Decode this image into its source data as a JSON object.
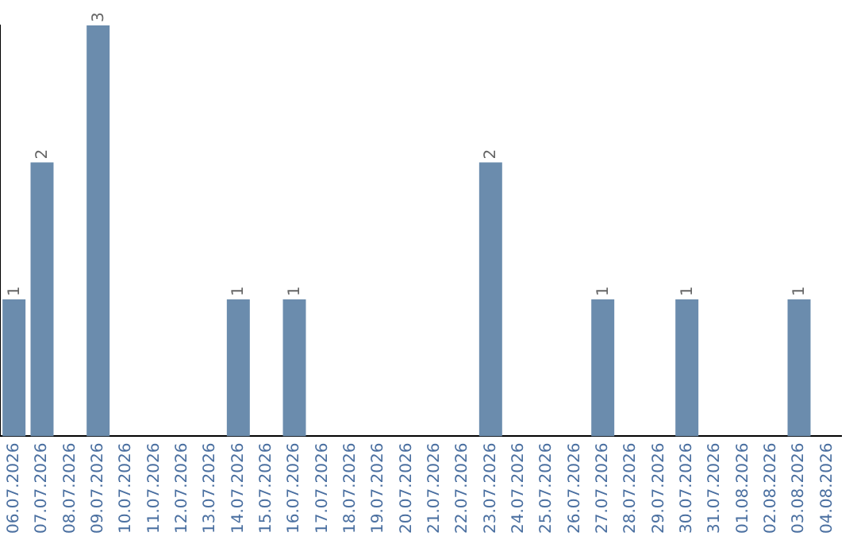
{
  "chart_data": {
    "type": "bar",
    "categories": [
      "06.07.2026",
      "07.07.2026",
      "08.07.2026",
      "09.07.2026",
      "10.07.2026",
      "11.07.2026",
      "12.07.2026",
      "13.07.2026",
      "14.07.2026",
      "15.07.2026",
      "16.07.2026",
      "17.07.2026",
      "18.07.2026",
      "19.07.2026",
      "20.07.2026",
      "21.07.2026",
      "22.07.2026",
      "23.07.2026",
      "24.07.2026",
      "25.07.2026",
      "26.07.2026",
      "27.07.2026",
      "28.07.2026",
      "29.07.2026",
      "30.07.2026",
      "31.07.2026",
      "01.08.2026",
      "02.08.2026",
      "03.08.2026",
      "04.08.2026"
    ],
    "values": [
      1,
      2,
      0,
      3,
      0,
      0,
      0,
      0,
      1,
      0,
      1,
      0,
      0,
      0,
      0,
      0,
      0,
      2,
      0,
      0,
      0,
      1,
      0,
      0,
      1,
      0,
      0,
      0,
      1,
      0
    ],
    "value_labels": [
      "1",
      "2",
      null,
      "3",
      null,
      null,
      null,
      null,
      "1",
      null,
      "1",
      null,
      null,
      null,
      null,
      null,
      null,
      "2",
      null,
      null,
      null,
      "1",
      null,
      null,
      "1",
      null,
      null,
      null,
      "1",
      null
    ],
    "color": "#6b8cad",
    "ylim": [
      0,
      3
    ],
    "grid": false,
    "legend": false,
    "tick_labels": "x"
  }
}
